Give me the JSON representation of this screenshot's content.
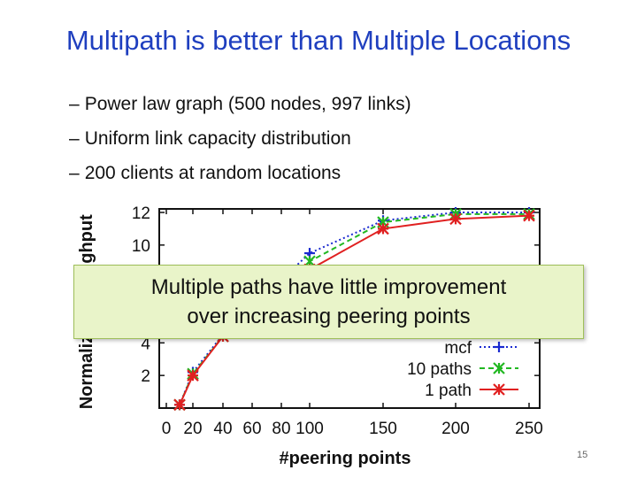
{
  "slide": {
    "title": "Multipath is better than Multiple Locations",
    "bullets": [
      "Power law graph (500 nodes, 997 links)",
      "Uniform link capacity distribution",
      "200 clients at random locations"
    ],
    "bullet_dash": "–",
    "callout_lines": [
      "Multiple paths have little improvement",
      "over increasing peering points"
    ],
    "slide_number": "15"
  },
  "chart_data": {
    "type": "line",
    "xlabel": "#peering points",
    "ylabel": "Normalized throughput",
    "ylabel_visible": "ghput",
    "ylabel_visible_lower": "Normaliz",
    "x_ticks": [
      "0",
      "20",
      "40",
      "60",
      "80",
      "100",
      "150",
      "200",
      "250"
    ],
    "y_ticks": [
      "2",
      "4",
      "10",
      "12"
    ],
    "x_tick_values": [
      0,
      20,
      40,
      60,
      80,
      100,
      150,
      200,
      250
    ],
    "y_tick_values": [
      2,
      4,
      10,
      12
    ],
    "ylim": [
      0,
      12
    ],
    "grid": false,
    "legend_position": "bottom-right",
    "series": [
      {
        "name": "mcf",
        "color": "#1a2ad0",
        "marker": "plus",
        "x": [
          10,
          20,
          40,
          100,
          150,
          200,
          250
        ],
        "y": [
          0.2,
          2.2,
          4.5,
          9.5,
          11.5,
          12.0,
          12.0
        ]
      },
      {
        "name": "10 paths",
        "color": "#22b822",
        "marker": "star",
        "x": [
          10,
          20,
          40,
          100,
          150,
          200,
          250
        ],
        "y": [
          0.2,
          2.1,
          4.4,
          9.0,
          11.4,
          11.9,
          11.9
        ]
      },
      {
        "name": "1 path",
        "color": "#e02020",
        "marker": "asterisk",
        "x": [
          10,
          20,
          40,
          100,
          150,
          200,
          250
        ],
        "y": [
          0.2,
          2.0,
          4.4,
          8.5,
          11.0,
          11.6,
          11.8
        ]
      }
    ]
  }
}
